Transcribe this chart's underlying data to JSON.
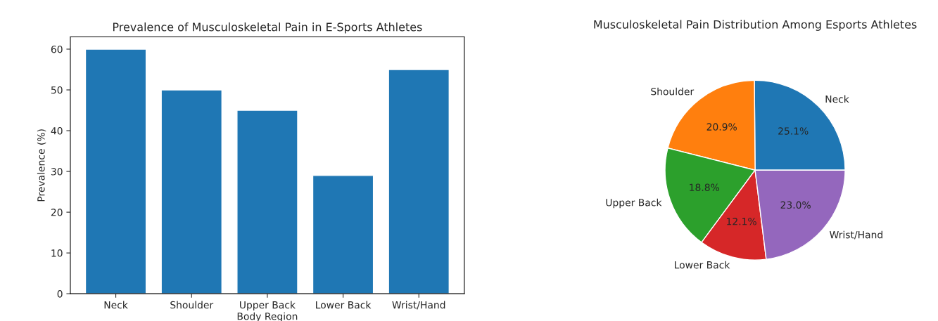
{
  "chart_data": [
    {
      "type": "bar",
      "title": "Prevalence of Musculoskeletal Pain in E-Sports Athletes",
      "xlabel": "Body Region",
      "ylabel": "Prevalence (%)",
      "categories": [
        "Neck",
        "Shoulder",
        "Upper Back",
        "Lower Back",
        "Wrist/Hand"
      ],
      "values": [
        60,
        50,
        45,
        29,
        55
      ],
      "color": "#1f77b4",
      "ylim": [
        0,
        63
      ],
      "yticks": [
        0,
        10,
        20,
        30,
        40,
        50,
        60
      ],
      "grid": false,
      "legend": false
    },
    {
      "type": "pie",
      "title": "Musculoskeletal Pain Distribution Among Esports Athletes",
      "categories": [
        "Neck",
        "Shoulder",
        "Upper Back",
        "Lower Back",
        "Wrist/Hand"
      ],
      "values": [
        25.1,
        20.9,
        18.8,
        12.1,
        23.0
      ],
      "value_labels": [
        "25.1%",
        "20.9%",
        "18.8%",
        "12.1%",
        "23.0%"
      ],
      "colors": [
        "#1f77b4",
        "#ff7f0e",
        "#2ca02c",
        "#d62728",
        "#9467bd"
      ]
    }
  ]
}
